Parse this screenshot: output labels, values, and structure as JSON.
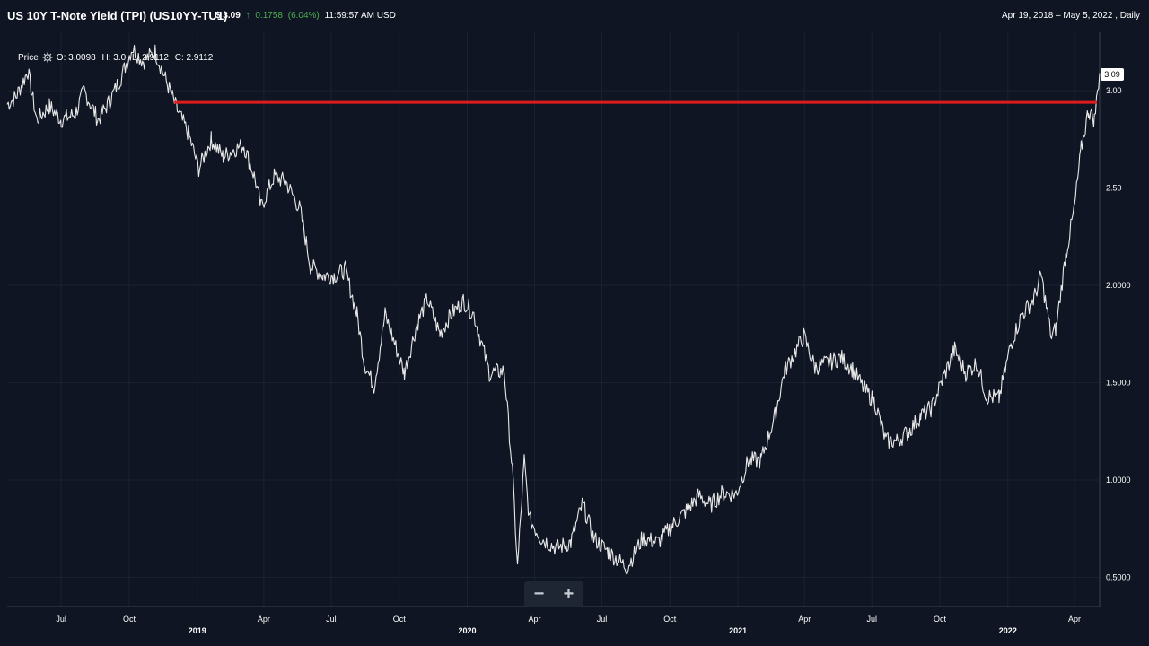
{
  "header": {
    "title": "US 10Y T-Note Yield (TPI)  (US10YY-TU1)",
    "price": "$ 3.09",
    "change_arrow": "↑",
    "change": "0.1758",
    "change_pct": "(6.04%)",
    "time": "11:59:57 AM USD",
    "range": "Apr 19, 2018 – May 5, 2022 , Daily"
  },
  "legend": {
    "label": "Price",
    "open": "O: 3.0098",
    "high": "H: 3.0",
    "low": "L: 2.9112",
    "close": "C: 2.9112"
  },
  "last_value_label": "3.09",
  "zoom": {
    "minus": "−",
    "plus": "+"
  },
  "colors": {
    "background": "#0f1522",
    "grid": "#1a2232",
    "price_line": "#e8e8e8",
    "resistance": "#e01b1b",
    "up": "#4caf50"
  },
  "chart_data": {
    "type": "line",
    "title": "US 10Y T-Note Yield (TPI)  (US10YY-TU1)",
    "xlabel": "",
    "ylabel": "",
    "x_range": [
      "2018-04-19",
      "2022-05-05"
    ],
    "ylim": [
      0.35,
      3.3
    ],
    "y_ticks": [
      0.5,
      1.0,
      1.5,
      2.0,
      2.5,
      3.0
    ],
    "y_tick_labels": [
      "0.5000",
      "1.0000",
      "1.5000",
      "2.0000",
      "2.50",
      "3.00"
    ],
    "x_ticks": [
      {
        "date": "2018-07-01",
        "label": "Jul",
        "row": 1
      },
      {
        "date": "2018-10-01",
        "label": "Oct",
        "row": 1
      },
      {
        "date": "2019-01-01",
        "label": "2019",
        "row": 2
      },
      {
        "date": "2019-04-01",
        "label": "Apr",
        "row": 1
      },
      {
        "date": "2019-07-01",
        "label": "Jul",
        "row": 1
      },
      {
        "date": "2019-10-01",
        "label": "Oct",
        "row": 1
      },
      {
        "date": "2020-01-01",
        "label": "2020",
        "row": 2
      },
      {
        "date": "2020-04-01",
        "label": "Apr",
        "row": 1
      },
      {
        "date": "2020-07-01",
        "label": "Jul",
        "row": 1
      },
      {
        "date": "2020-10-01",
        "label": "Oct",
        "row": 1
      },
      {
        "date": "2021-01-01",
        "label": "2021",
        "row": 2
      },
      {
        "date": "2021-04-01",
        "label": "Apr",
        "row": 1
      },
      {
        "date": "2021-07-01",
        "label": "Jul",
        "row": 1
      },
      {
        "date": "2021-10-01",
        "label": "Oct",
        "row": 1
      },
      {
        "date": "2022-01-01",
        "label": "2022",
        "row": 2
      },
      {
        "date": "2022-04-01",
        "label": "Apr",
        "row": 1
      }
    ],
    "grid": true,
    "resistance_level": 2.94,
    "resistance_start": "2018-12-01",
    "series": [
      {
        "x": [
          "2018-04-19",
          "2018-05-01",
          "2018-05-17",
          "2018-05-29",
          "2018-06-15",
          "2018-07-01",
          "2018-07-20",
          "2018-08-01",
          "2018-08-20",
          "2018-09-05",
          "2018-09-20",
          "2018-10-05",
          "2018-10-20",
          "2018-11-05",
          "2018-11-20",
          "2018-12-05",
          "2018-12-20",
          "2019-01-03",
          "2019-01-20",
          "2019-02-05",
          "2019-02-20",
          "2019-03-05",
          "2019-03-20",
          "2019-03-28",
          "2019-04-15",
          "2019-05-01",
          "2019-05-20",
          "2019-06-03",
          "2019-06-20",
          "2019-07-05",
          "2019-07-20",
          "2019-08-05",
          "2019-08-15",
          "2019-08-28",
          "2019-09-12",
          "2019-09-25",
          "2019-10-08",
          "2019-10-25",
          "2019-11-08",
          "2019-11-25",
          "2019-12-10",
          "2019-12-27",
          "2020-01-10",
          "2020-01-31",
          "2020-02-20",
          "2020-03-02",
          "2020-03-09",
          "2020-03-18",
          "2020-03-25",
          "2020-04-10",
          "2020-05-01",
          "2020-05-20",
          "2020-06-05",
          "2020-06-20",
          "2020-07-10",
          "2020-08-04",
          "2020-08-25",
          "2020-09-15",
          "2020-10-05",
          "2020-10-25",
          "2020-11-09",
          "2020-11-25",
          "2020-12-10",
          "2020-12-30",
          "2021-01-15",
          "2021-02-01",
          "2021-02-20",
          "2021-03-05",
          "2021-03-31",
          "2021-04-15",
          "2021-05-01",
          "2021-05-20",
          "2021-06-05",
          "2021-06-20",
          "2021-07-05",
          "2021-07-20",
          "2021-08-04",
          "2021-08-20",
          "2021-09-05",
          "2021-09-20",
          "2021-10-05",
          "2021-10-21",
          "2021-11-05",
          "2021-11-20",
          "2021-12-03",
          "2021-12-20",
          "2022-01-05",
          "2022-01-20",
          "2022-02-05",
          "2022-02-15",
          "2022-03-01",
          "2022-03-07",
          "2022-03-20",
          "2022-04-01",
          "2022-04-10",
          "2022-04-20",
          "2022-04-28",
          "2022-05-05"
        ],
        "y": [
          2.93,
          2.97,
          3.1,
          2.85,
          2.92,
          2.85,
          2.88,
          3.0,
          2.85,
          2.95,
          3.07,
          3.22,
          3.15,
          3.2,
          3.05,
          2.9,
          2.78,
          2.6,
          2.75,
          2.66,
          2.7,
          2.72,
          2.55,
          2.4,
          2.56,
          2.53,
          2.39,
          2.1,
          2.05,
          2.05,
          2.08,
          1.85,
          1.6,
          1.48,
          1.85,
          1.7,
          1.55,
          1.8,
          1.93,
          1.75,
          1.85,
          1.92,
          1.85,
          1.55,
          1.56,
          1.05,
          0.55,
          1.1,
          0.8,
          0.7,
          0.65,
          0.68,
          0.88,
          0.7,
          0.63,
          0.55,
          0.7,
          0.68,
          0.77,
          0.85,
          0.92,
          0.87,
          0.93,
          0.93,
          1.1,
          1.1,
          1.33,
          1.56,
          1.74,
          1.58,
          1.6,
          1.63,
          1.57,
          1.47,
          1.4,
          1.2,
          1.2,
          1.25,
          1.33,
          1.37,
          1.52,
          1.67,
          1.55,
          1.6,
          1.43,
          1.42,
          1.7,
          1.85,
          1.93,
          2.05,
          1.73,
          1.78,
          2.15,
          2.4,
          2.7,
          2.9,
          2.85,
          3.09
        ]
      }
    ]
  }
}
